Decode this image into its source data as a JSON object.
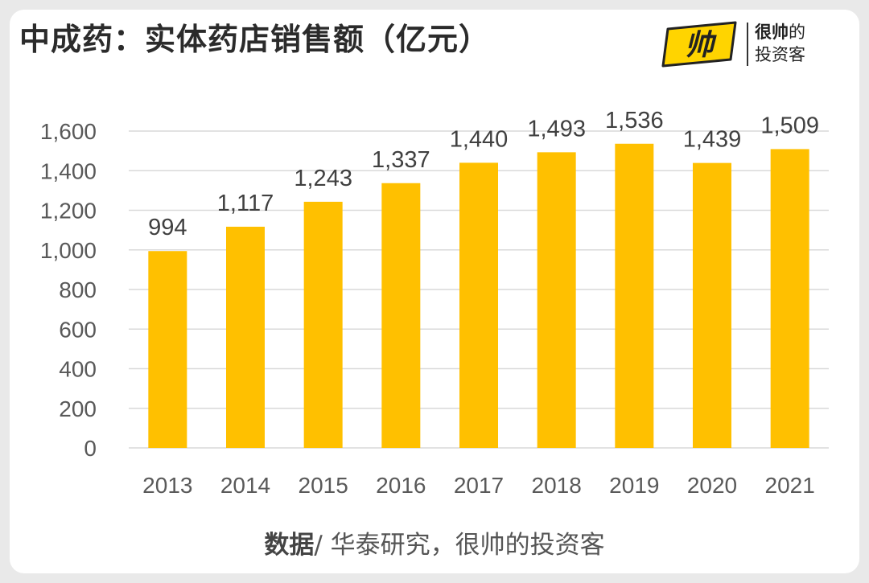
{
  "header": {
    "title": "中成药：实体药店销售额（亿元）"
  },
  "logo": {
    "mark": "帅",
    "line1_bold": "很帅",
    "line1_rest": "的",
    "line2": "投资客"
  },
  "footer": {
    "source_label": "数据",
    "source_text": "/ 华泰研究，很帅的投资客"
  },
  "colors": {
    "bar": "#ffc000",
    "grid": "#d9d9d9",
    "label": "#595959"
  },
  "chart_data": {
    "type": "bar",
    "categories": [
      "2013",
      "2014",
      "2015",
      "2016",
      "2017",
      "2018",
      "2019",
      "2020",
      "2021"
    ],
    "values": [
      994,
      1117,
      1243,
      1337,
      1440,
      1493,
      1536,
      1439,
      1509
    ],
    "value_labels": [
      "994",
      "1,117",
      "1,243",
      "1,337",
      "1,440",
      "1,493",
      "1,536",
      "1,439",
      "1,509"
    ],
    "yticks": [
      0,
      200,
      400,
      600,
      800,
      1000,
      1200,
      1400,
      1600
    ],
    "ytick_labels": [
      "0",
      "200",
      "400",
      "600",
      "800",
      "1,000",
      "1,200",
      "1,400",
      "1,600"
    ],
    "ylim": [
      0,
      1600
    ],
    "title": "中成药：实体药店销售额（亿元）",
    "xlabel": "",
    "ylabel": "",
    "grid": true,
    "legend": "none"
  }
}
